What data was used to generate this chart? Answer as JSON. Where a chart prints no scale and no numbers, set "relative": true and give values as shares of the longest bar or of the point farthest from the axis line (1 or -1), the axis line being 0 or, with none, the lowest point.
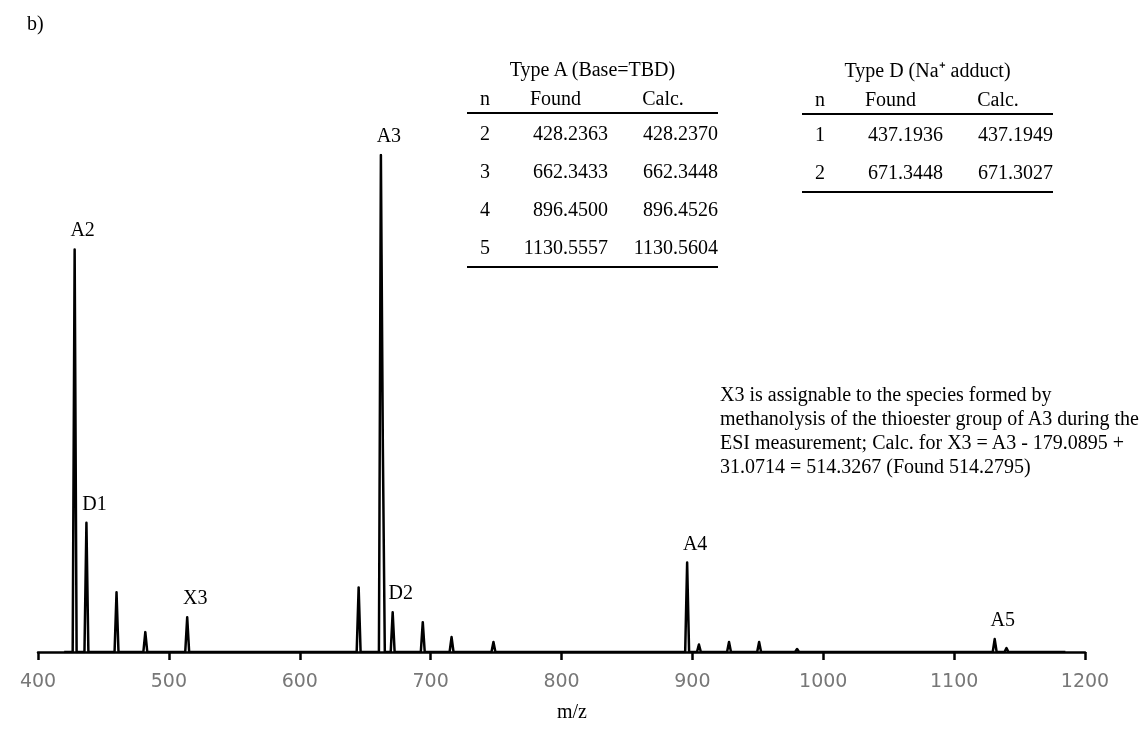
{
  "chart_data": {
    "type": "line",
    "title": "b)",
    "xlabel": "m/z",
    "relative": true,
    "color": "#000000",
    "marker": "none",
    "line_style": "solid",
    "grid": false,
    "xlim": [
      400,
      1200
    ],
    "xticks": [
      400,
      500,
      600,
      700,
      800,
      900,
      1000,
      1100,
      1200
    ],
    "x": [
      420,
      426.5,
      428,
      429.5,
      435.5,
      437,
      438.5,
      458.5,
      460,
      461.5,
      480.5,
      482,
      483.5,
      512.5,
      514,
      515.5,
      643.5,
      645,
      646.5,
      660.5,
      662,
      663.5,
      665,
      669.5,
      671,
      672.5,
      692.5,
      694,
      695.5,
      714.5,
      716,
      717.5,
      746.5,
      748,
      749.5,
      894.5,
      896,
      897.5,
      903.5,
      905,
      906.5,
      926.5,
      928,
      929.5,
      949.5,
      951,
      952.5,
      978.5,
      980,
      981.5,
      1129.5,
      1131,
      1132.5,
      1138.5,
      1140,
      1141.5,
      1185
    ],
    "values": [
      0,
      0,
      0.81,
      0,
      0,
      0.26,
      0,
      0,
      0.12,
      0,
      0,
      0.04,
      0,
      0,
      0.07,
      0,
      0,
      0.13,
      0,
      0,
      1.0,
      0.41,
      0,
      0,
      0.08,
      0,
      0,
      0.06,
      0,
      0,
      0.03,
      0,
      0,
      0.02,
      0,
      0,
      0.18,
      0,
      0,
      0.015,
      0,
      0,
      0.02,
      0,
      0,
      0.02,
      0,
      0,
      0.006,
      0,
      0,
      0.026,
      0,
      0,
      0.008,
      0,
      0
    ],
    "annotations": [
      {
        "text": "A2",
        "x": 428,
        "y": 0.81
      },
      {
        "text": "D1",
        "x": 437,
        "y": 0.26
      },
      {
        "text": "X3",
        "x": 514,
        "y": 0.07
      },
      {
        "text": "A3",
        "x": 662,
        "y": 1.0
      },
      {
        "text": "D2",
        "x": 671,
        "y": 0.08
      },
      {
        "text": "A4",
        "x": 896,
        "y": 0.18
      },
      {
        "text": "A5",
        "x": 1131,
        "y": 0.026
      },
      "Type A (Base=TBD)",
      "n",
      "Found",
      "Calc.",
      "2",
      "428.2363",
      "428.2370",
      "3",
      "662.3433",
      "662.3448",
      "4",
      "896.4500",
      "896.4526",
      "5",
      "1130.5557",
      "1130.5604",
      "Type D  (Na⁺ adduct)",
      "n",
      "Found",
      "Calc.",
      "1",
      "437.1936",
      "437.1949",
      "2",
      "671.3448",
      "671.3027",
      "X3 is assignable to the species formed by methanolysis of the thioester group of A3 during the ESI measurement; Calc. for X3 = A3 - 179.0895 + 31.0714 = 514.3267 (Found 514.2795)"
    ]
  }
}
